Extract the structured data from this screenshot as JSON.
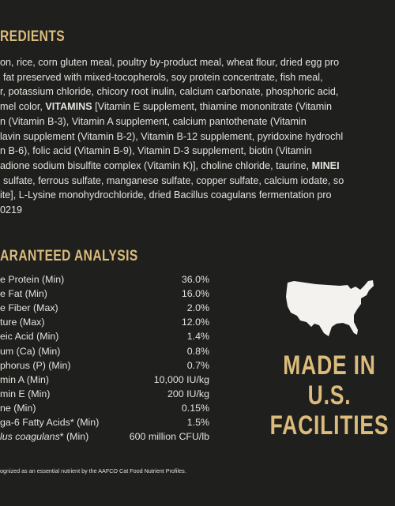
{
  "ingredients": {
    "heading": "REDIENTS",
    "lines": [
      [
        "on, rice, corn gluten meal, poultry by-product meal, wheat flour, dried egg pro"
      ],
      [
        "fat preserved with mixed-tocopherols, soy protein concentrate, fish meal,"
      ],
      [
        "r, potassium chloride, chicory root inulin, calcium carbonate, phosphoric acid,"
      ],
      [
        "mel color, ",
        {
          "text": "VITAMINS",
          "bold": true
        },
        " [Vitamin E supplement, thiamine mononitrate (Vitamin"
      ],
      [
        "n (Vitamin B-3), Vitamin A supplement, calcium pantothenate (Vitamin"
      ],
      [
        "lavin supplement (Vitamin B-2), Vitamin B-12 supplement, pyridoxine hydrochl"
      ],
      [
        "n B-6), folic acid (Vitamin B-9), Vitamin D-3 supplement, biotin (Vitamin"
      ],
      [
        "adione sodium bisulfite complex (Vitamin K)], choline chloride, taurine, ",
        {
          "text": "MINEI",
          "bold": true
        }
      ],
      [
        "sulfate, ferrous sulfate, manganese sulfate, copper sulfate, calcium iodate, so"
      ],
      [
        "ite], L-Lysine monohydrochloride, dried Bacillus coagulans fermentation pro"
      ],
      [
        "0219"
      ]
    ]
  },
  "analysis": {
    "heading": "ARANTEED ANALYSIS",
    "rows": [
      {
        "label": [
          "e Protein (Min)"
        ],
        "value": "36.0%"
      },
      {
        "label": [
          "e Fat (Min)"
        ],
        "value": "16.0%"
      },
      {
        "label": [
          "e Fiber (Max)"
        ],
        "value": "2.0%"
      },
      {
        "label": [
          "ture (Max)"
        ],
        "value": "12.0%"
      },
      {
        "label": [
          "eic Acid (Min)"
        ],
        "value": "1.4%"
      },
      {
        "label": [
          "um (Ca) (Min)"
        ],
        "value": "0.8%"
      },
      {
        "label": [
          "phorus (P) (Min)"
        ],
        "value": "0.7%"
      },
      {
        "label": [
          "min A (Min)"
        ],
        "value": "10,000 IU/kg"
      },
      {
        "label": [
          "min E (Min)"
        ],
        "value": "200 IU/kg"
      },
      {
        "label": [
          "ne (Min)"
        ],
        "value": "0.15%"
      },
      {
        "label": [
          "ga-6 Fatty Acids* (Min)"
        ],
        "value": "1.5%"
      },
      {
        "label": [
          {
            "text": "lus coagulans",
            "italic": true
          },
          "* (Min)"
        ],
        "value": "600 million CFU/lb"
      }
    ],
    "footnote": "ognized as an essential nutrient by the AAFCO Cat Food Nutrient Profiles."
  },
  "badge": {
    "lines": [
      "MADE IN",
      "U.S.",
      "FACILITIES"
    ]
  }
}
